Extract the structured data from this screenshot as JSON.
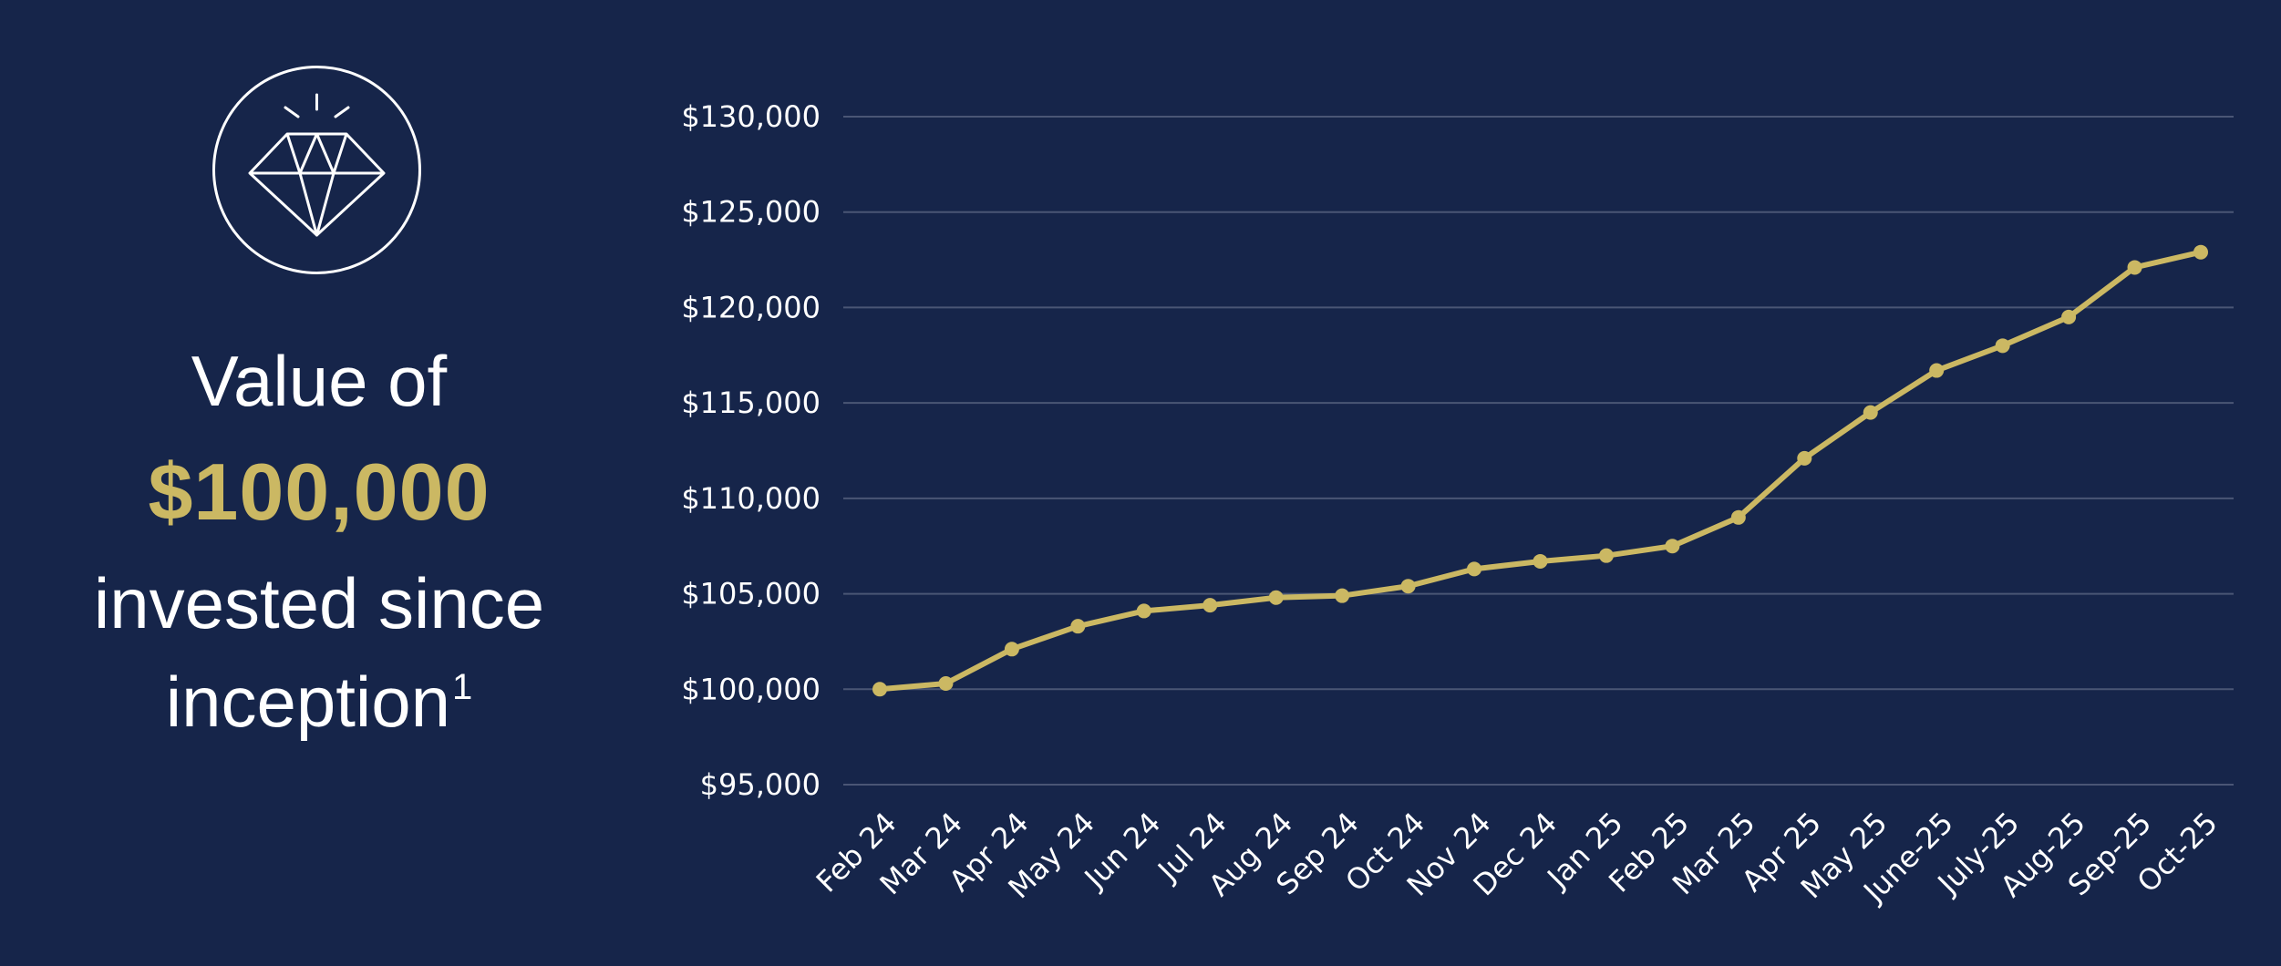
{
  "headline": {
    "line1": "Value of",
    "amount": "$100,000",
    "line3": "invested since",
    "line4": "inception",
    "footnote_marker": "1"
  },
  "icon": {
    "name": "diamond-icon"
  },
  "colors": {
    "background": "#16254a",
    "accent": "#cbb863",
    "text": "#ffffff",
    "gridline": "#4a5675"
  },
  "chart_data": {
    "type": "line",
    "title": "",
    "xlabel": "",
    "ylabel": "",
    "ylim": [
      95000,
      130000
    ],
    "yticks": [
      95000,
      100000,
      105000,
      110000,
      115000,
      120000,
      125000,
      130000
    ],
    "ytick_labels": [
      "$95,000",
      "$100,000",
      "$105,000",
      "$110,000",
      "$115,000",
      "$120,000",
      "$125,000",
      "$130,000"
    ],
    "grid": true,
    "categories": [
      "Feb 24",
      "Mar 24",
      "Apr 24",
      "May 24",
      "Jun 24",
      "Jul 24",
      "Aug 24",
      "Sep 24",
      "Oct 24",
      "Nov 24",
      "Dec 24",
      "Jan 25",
      "Feb 25",
      "Mar 25",
      "Apr 25",
      "May 25",
      "June-25",
      "July-25",
      "Aug-25",
      "Sep-25",
      "Oct-25"
    ],
    "series": [
      {
        "name": "Value of $100,000",
        "values": [
          100000,
          100300,
          102100,
          103300,
          104100,
          104400,
          104800,
          104900,
          105400,
          106300,
          106700,
          107000,
          107500,
          109000,
          112100,
          114500,
          116700,
          118000,
          119500,
          122100,
          122900
        ]
      }
    ]
  }
}
